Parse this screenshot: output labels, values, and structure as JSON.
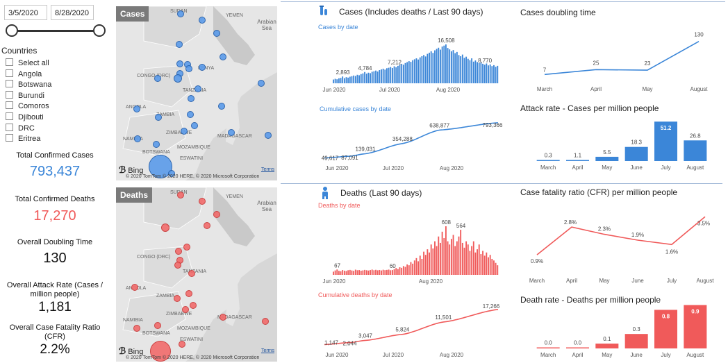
{
  "filters": {
    "date_start": "3/5/2020",
    "date_end": "8/28/2020",
    "countries_title": "Countries",
    "countries": [
      "Select all",
      "Angola",
      "Botswana",
      "Burundi",
      "Comoros",
      "Djibouti",
      "DRC",
      "Eritrea"
    ]
  },
  "kpis": [
    {
      "label": "Total Confirmed Cases",
      "value": "793,437",
      "color": "#3b86d8"
    },
    {
      "label": "Total Confirmed Deaths",
      "value": "17,270",
      "color": "#f05a5a"
    },
    {
      "label": "Overall Doubling Time",
      "value": "130",
      "color": "#111111"
    },
    {
      "label": "Overall Attack Rate (Cases / million people)",
      "value": "1,181",
      "color": "#111111"
    },
    {
      "label": "Overall Case Fatality Ratio (CFR)",
      "value": "2.2%",
      "color": "#111111"
    }
  ],
  "maps": {
    "cases": {
      "tag": "Cases",
      "copyright": "© 2020 TomTom © 2020 HERE, © 2020 Microsoft Corporation",
      "terms": "Terms",
      "bing": "Bing",
      "labels": [
        "SUDAN",
        "YEMEN",
        "Arabian Sea",
        "CONGO (DRC)",
        "KENYA",
        "TANZANIA",
        "ANGOLA",
        "ZAMBIA",
        "ZIMBABWE",
        "NAMIBIA",
        "BOTSWANA",
        "MOZAMBIQUE",
        "MADAGASCAR",
        "ESWATINI"
      ]
    },
    "deaths": {
      "tag": "Deaths",
      "copyright": "© 2020 TomTom © 2020 HERE, © 2020 Microsoft Corporation",
      "terms": "Terms",
      "bing": "Bing",
      "labels": [
        "SUDAN",
        "YEMEN",
        "Arabian Sea",
        "CONGO (DRC)",
        "TANZANIA",
        "ANGOLA",
        "ZAMBIA",
        "ZIMBABWE",
        "NAMIBIA",
        "BOTSWANA",
        "MOZAMBIQUE",
        "MADAGASCAR",
        "ESWATINI"
      ]
    }
  },
  "colors": {
    "cases": "#3b86d8",
    "deaths": "#f05a5a",
    "gap": "#9fb6d6"
  },
  "icons": {
    "cases": "test-tube-icon",
    "deaths": "person-icon"
  },
  "chart_data": [
    {
      "id": "cases_by_date",
      "type": "bar",
      "title": "Cases (Includes deaths / Last 90 days)",
      "subtitle": "Cases by date",
      "x_ticks": [
        "Jun 2020",
        "Jul 2020",
        "Aug 2020"
      ],
      "data_labels": [
        {
          "index": 5,
          "value": "2,893"
        },
        {
          "index": 17,
          "value": "4,784"
        },
        {
          "index": 33,
          "value": "7,212"
        },
        {
          "index": 61,
          "value": "16,508"
        },
        {
          "index": 82,
          "value": "8,770"
        }
      ],
      "values": [
        1600,
        1900,
        1700,
        2100,
        2300,
        2893,
        2200,
        2600,
        2400,
        2800,
        3000,
        3300,
        3100,
        3600,
        3400,
        3900,
        4200,
        4784,
        4100,
        4500,
        4300,
        4900,
        5100,
        5400,
        5000,
        5600,
        5900,
        6200,
        5800,
        6400,
        6600,
        6900,
        6500,
        7212,
        6800,
        7400,
        7800,
        8200,
        7900,
        8600,
        9000,
        9400,
        9100,
        9800,
        10200,
        10600,
        10100,
        11000,
        11500,
        12000,
        11400,
        12500,
        13000,
        13600,
        12900,
        14000,
        14600,
        15100,
        14300,
        15600,
        16000,
        16508,
        15000,
        14400,
        13600,
        14100,
        12800,
        13300,
        12000,
        11500,
        12200,
        10800,
        11300,
        10400,
        9800,
        10600,
        9200,
        9700,
        9000,
        8600,
        8770,
        8300,
        7900,
        8400,
        7600,
        8000,
        7300,
        7700,
        7000,
        7400
      ]
    },
    {
      "id": "cumulative_cases",
      "type": "line",
      "subtitle": "Cumulative cases by date",
      "x_ticks": [
        "Jun 2020",
        "Jul 2020",
        "Aug 2020"
      ],
      "points": [
        {
          "x": 0,
          "y": 49617,
          "label": "49,617"
        },
        {
          "x": 13,
          "y": 87091,
          "label": "87,091"
        },
        {
          "x": 21,
          "y": 139031,
          "label": "139,031"
        },
        {
          "x": 40,
          "y": 354288,
          "label": "354,288"
        },
        {
          "x": 59,
          "y": 638877,
          "label": "638,877"
        },
        {
          "x": 89,
          "y": 793366,
          "label": "793,366"
        }
      ],
      "ymax": 850000
    },
    {
      "id": "doubling_time",
      "type": "line",
      "title": "Cases doubling time",
      "categories": [
        "March",
        "April",
        "May",
        "August"
      ],
      "values": [
        7,
        25,
        23,
        130
      ],
      "labels": [
        "7",
        "25",
        "23",
        "130"
      ],
      "ymax": 150
    },
    {
      "id": "attack_rate",
      "type": "bar",
      "title": "Attack rate - Cases per million people",
      "categories": [
        "March",
        "April",
        "May",
        "June",
        "July",
        "August"
      ],
      "values": [
        0.3,
        1.1,
        5.5,
        18.3,
        51.2,
        26.8
      ],
      "labels": [
        "0.3",
        "1.1",
        "5.5",
        "18.3",
        "51.2",
        "26.8"
      ],
      "ymax": 55
    },
    {
      "id": "deaths_by_date",
      "type": "bar",
      "title": "Deaths (Last 90 days)",
      "subtitle": "Deaths by date",
      "x_ticks": [
        "Jun 2020",
        "Aug 2020"
      ],
      "data_labels": [
        {
          "index": 2,
          "value": "67"
        },
        {
          "index": 32,
          "value": "60"
        },
        {
          "index": 61,
          "value": "608"
        },
        {
          "index": 69,
          "value": "564"
        }
      ],
      "values": [
        40,
        55,
        67,
        50,
        45,
        60,
        52,
        48,
        58,
        62,
        55,
        50,
        65,
        58,
        60,
        52,
        56,
        62,
        58,
        54,
        60,
        66,
        58,
        63,
        57,
        61,
        55,
        64,
        59,
        62,
        66,
        58,
        60,
        70,
        85,
        72,
        95,
        88,
        110,
        100,
        130,
        120,
        160,
        140,
        180,
        210,
        170,
        240,
        200,
        290,
        250,
        320,
        280,
        380,
        330,
        420,
        360,
        480,
        400,
        540,
        460,
        608,
        420,
        380,
        450,
        500,
        360,
        420,
        480,
        564,
        400,
        340,
        420,
        380,
        300,
        360,
        420,
        280,
        320,
        380,
        260,
        300,
        240,
        280,
        220,
        250,
        200,
        180,
        150,
        120
      ]
    },
    {
      "id": "cumulative_deaths",
      "type": "line",
      "subtitle": "Cumulative deaths by date",
      "x_ticks": [
        "Jun 2020",
        "Jul 2020",
        "Aug 2020"
      ],
      "points": [
        {
          "x": 0,
          "y": 1147,
          "label": "1,147"
        },
        {
          "x": 13,
          "y": 2044,
          "label": "2,044"
        },
        {
          "x": 21,
          "y": 3047,
          "label": "3,047"
        },
        {
          "x": 40,
          "y": 5824,
          "label": "5,824"
        },
        {
          "x": 61,
          "y": 11501,
          "label": "11,501"
        },
        {
          "x": 89,
          "y": 17266,
          "label": "17,266"
        }
      ],
      "ymax": 18500
    },
    {
      "id": "cfr",
      "type": "line",
      "title": "Case fatality ratio (CFR) per million people",
      "categories": [
        "March",
        "April",
        "May",
        "June",
        "July",
        "August"
      ],
      "values": [
        0.9,
        2.8,
        2.3,
        1.9,
        1.6,
        3.5
      ],
      "labels": [
        "0.9%",
        "2.8%",
        "2.3%",
        "1.9%",
        "1.6%",
        "3.5%"
      ],
      "ymax": 3.8
    },
    {
      "id": "death_rate",
      "type": "bar",
      "title": "Death rate - Deaths per million people",
      "categories": [
        "March",
        "April",
        "May",
        "June",
        "July",
        "August"
      ],
      "values": [
        0.0,
        0.0,
        0.1,
        0.3,
        0.8,
        0.9
      ],
      "labels": [
        "0.0",
        "0.0",
        "0.1",
        "0.3",
        "0.8",
        "0.9"
      ],
      "ymax": 0.95
    }
  ]
}
